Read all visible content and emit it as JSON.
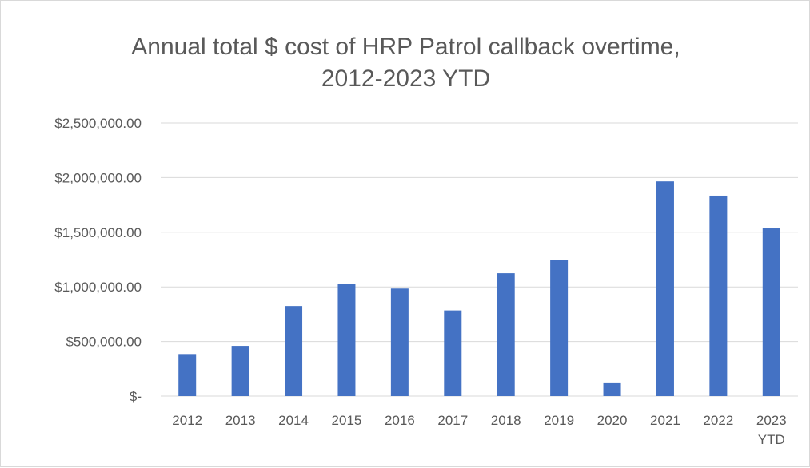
{
  "chart_data": {
    "type": "bar",
    "title_lines": [
      "Annual total $ cost of HRP Patrol callback overtime,",
      "2012-2023 YTD"
    ],
    "categories": [
      [
        "2012"
      ],
      [
        "2013"
      ],
      [
        "2014"
      ],
      [
        "2015"
      ],
      [
        "2016"
      ],
      [
        "2017"
      ],
      [
        "2018"
      ],
      [
        "2019"
      ],
      [
        "2020"
      ],
      [
        "2021"
      ],
      [
        "2022"
      ],
      [
        "2023",
        "YTD"
      ]
    ],
    "values": [
      385000,
      460000,
      825000,
      1025000,
      985000,
      785000,
      1125000,
      1250000,
      125000,
      1965000,
      1835000,
      1535000
    ],
    "y_ticks": [
      {
        "value": 0,
        "label": "$-"
      },
      {
        "value": 500000,
        "label": "$500,000.00"
      },
      {
        "value": 1000000,
        "label": "$1,000,000.00"
      },
      {
        "value": 1500000,
        "label": "$1,500,000.00"
      },
      {
        "value": 2000000,
        "label": "$2,000,000.00"
      },
      {
        "value": 2500000,
        "label": "$2,500,000.00"
      }
    ],
    "ylim": [
      0,
      2500000
    ],
    "xlabel": "",
    "ylabel": "",
    "grid": true,
    "legend": "none",
    "bar_color": "#4472c4",
    "grid_color": "#d9d9d9"
  }
}
